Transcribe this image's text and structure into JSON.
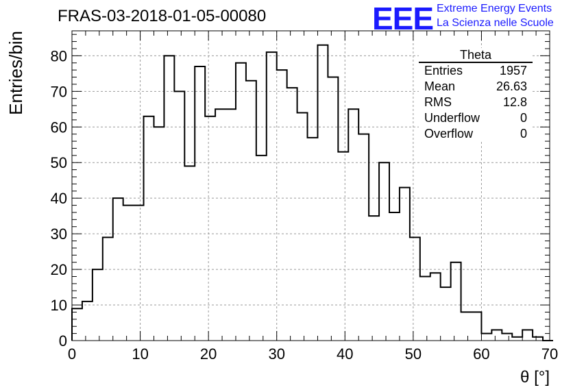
{
  "header": {
    "title": "FRAS-03-2018-01-05-00080",
    "logo_text": "EEE",
    "logo_line1": "Extreme Energy Events",
    "logo_line2": "La Scienza nelle Scuole",
    "logo_color": "#1a1aff"
  },
  "stats": {
    "title": "Theta",
    "rows": [
      {
        "label": "Entries",
        "value": "1957"
      },
      {
        "label": "Mean",
        "value": "26.63"
      },
      {
        "label": "RMS",
        "value": "12.8"
      },
      {
        "label": "Underflow",
        "value": "0"
      },
      {
        "label": "Overflow",
        "value": "0"
      }
    ]
  },
  "chart_data": {
    "type": "bar",
    "style": "step-histogram",
    "xlabel": "θ [°]",
    "ylabel": "Entries/bin",
    "xlim": [
      0,
      70
    ],
    "ylim": [
      0,
      87
    ],
    "grid": true,
    "bin_width": 1.5,
    "x_start": 0,
    "values": [
      9,
      11,
      20,
      29,
      40,
      38,
      38,
      63,
      60,
      80,
      70,
      49,
      77,
      63,
      65,
      65,
      78,
      73,
      52,
      81,
      76,
      71,
      64,
      57,
      83,
      74,
      53,
      65,
      58,
      35,
      50,
      36,
      43,
      29,
      18,
      19,
      15,
      22,
      8,
      8,
      2,
      3,
      2,
      1,
      3,
      1,
      0
    ],
    "x_ticks": [
      0,
      10,
      20,
      30,
      40,
      50,
      60,
      70
    ],
    "y_ticks": [
      0,
      10,
      20,
      30,
      40,
      50,
      60,
      70,
      80
    ],
    "line_color": "#000000"
  }
}
